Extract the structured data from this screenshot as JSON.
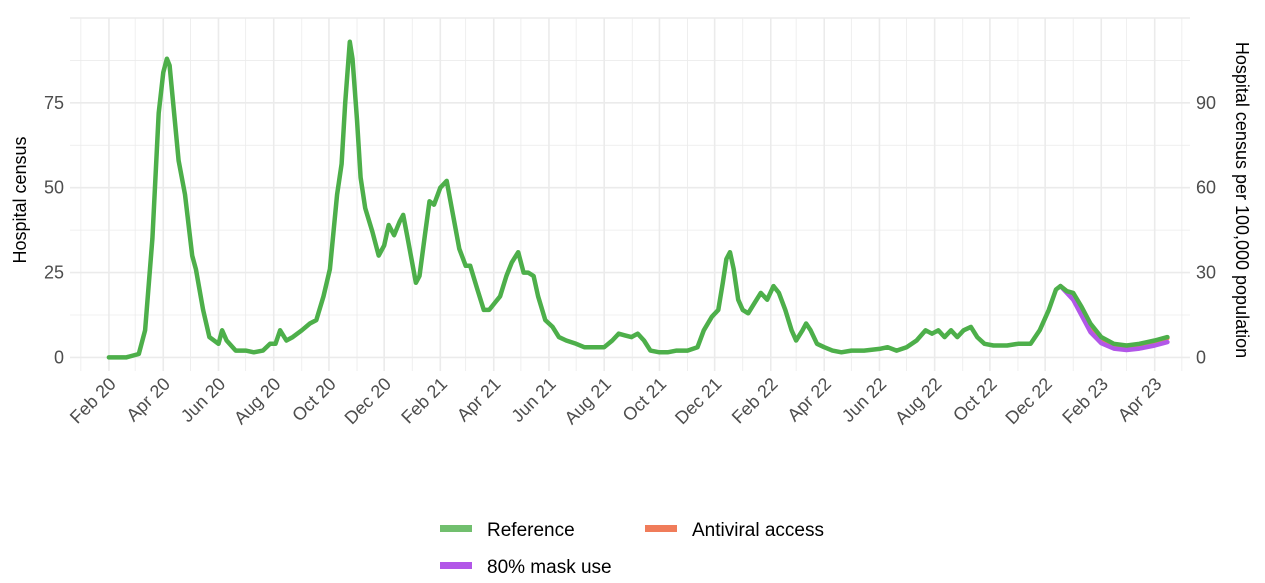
{
  "chart_data": {
    "type": "line",
    "ylabel": "Hospital census",
    "ylabel_right": "Hospital census per 100,000 population",
    "x_ticks": [
      "Feb 20",
      "Apr 20",
      "Jun 20",
      "Aug 20",
      "Oct 20",
      "Dec 20",
      "Feb 21",
      "Apr 21",
      "Jun 21",
      "Aug 21",
      "Oct 21",
      "Dec 21",
      "Feb 22",
      "Apr 22",
      "Jun 22",
      "Aug 22",
      "Oct 22",
      "Dec 22",
      "Feb 23",
      "Apr 23"
    ],
    "y_ticks": [
      0,
      25,
      50,
      75
    ],
    "y_ticks_right": [
      0,
      30,
      60,
      90
    ],
    "ylim": [
      -4,
      100
    ],
    "xlim": [
      "2019-12-20",
      "2023-05-10"
    ],
    "grid": true,
    "legend_position": "bottom",
    "colors": {
      "Reference": "#4daf4a",
      "Antiviral access": "#f07c5a",
      "80% mask use": "#b257e8",
      "grid": "#ebebeb"
    },
    "series": [
      {
        "name": "Reference",
        "points": [
          [
            "2020-02-01",
            0
          ],
          [
            "2020-02-20",
            0
          ],
          [
            "2020-03-05",
            1
          ],
          [
            "2020-03-12",
            8
          ],
          [
            "2020-03-20",
            35
          ],
          [
            "2020-03-27",
            72
          ],
          [
            "2020-04-01",
            84
          ],
          [
            "2020-04-05",
            88
          ],
          [
            "2020-04-08",
            86
          ],
          [
            "2020-04-13",
            72
          ],
          [
            "2020-04-18",
            58
          ],
          [
            "2020-04-25",
            48
          ],
          [
            "2020-05-03",
            30
          ],
          [
            "2020-05-07",
            26
          ],
          [
            "2020-05-15",
            14
          ],
          [
            "2020-05-22",
            6
          ],
          [
            "2020-06-01",
            4
          ],
          [
            "2020-06-05",
            8
          ],
          [
            "2020-06-10",
            5
          ],
          [
            "2020-06-20",
            2
          ],
          [
            "2020-07-01",
            2
          ],
          [
            "2020-07-10",
            1.5
          ],
          [
            "2020-07-20",
            2
          ],
          [
            "2020-07-28",
            4
          ],
          [
            "2020-08-03",
            4
          ],
          [
            "2020-08-08",
            8
          ],
          [
            "2020-08-15",
            5
          ],
          [
            "2020-08-22",
            6
          ],
          [
            "2020-09-01",
            8
          ],
          [
            "2020-09-10",
            10
          ],
          [
            "2020-09-17",
            11
          ],
          [
            "2020-09-25",
            18
          ],
          [
            "2020-10-02",
            26
          ],
          [
            "2020-10-10",
            48
          ],
          [
            "2020-10-15",
            57
          ],
          [
            "2020-10-19",
            75
          ],
          [
            "2020-10-24",
            93
          ],
          [
            "2020-10-27",
            88
          ],
          [
            "2020-11-01",
            70
          ],
          [
            "2020-11-05",
            53
          ],
          [
            "2020-11-10",
            44
          ],
          [
            "2020-11-18",
            37
          ],
          [
            "2020-11-25",
            30
          ],
          [
            "2020-12-01",
            33
          ],
          [
            "2020-12-06",
            39
          ],
          [
            "2020-12-12",
            36
          ],
          [
            "2020-12-18",
            40
          ],
          [
            "2020-12-22",
            42
          ],
          [
            "2020-12-27",
            35
          ],
          [
            "2021-01-05",
            22
          ],
          [
            "2021-01-09",
            24
          ],
          [
            "2021-01-15",
            36
          ],
          [
            "2021-01-20",
            46
          ],
          [
            "2021-01-25",
            45
          ],
          [
            "2021-02-01",
            50
          ],
          [
            "2021-02-08",
            52
          ],
          [
            "2021-02-15",
            42
          ],
          [
            "2021-02-22",
            32
          ],
          [
            "2021-03-01",
            27
          ],
          [
            "2021-03-06",
            27
          ],
          [
            "2021-03-14",
            20
          ],
          [
            "2021-03-21",
            14
          ],
          [
            "2021-03-27",
            14
          ],
          [
            "2021-04-02",
            16
          ],
          [
            "2021-04-08",
            18
          ],
          [
            "2021-04-15",
            24
          ],
          [
            "2021-04-21",
            28
          ],
          [
            "2021-04-28",
            31
          ],
          [
            "2021-05-04",
            25
          ],
          [
            "2021-05-09",
            25
          ],
          [
            "2021-05-15",
            24
          ],
          [
            "2021-05-20",
            18
          ],
          [
            "2021-05-28",
            11
          ],
          [
            "2021-06-05",
            9
          ],
          [
            "2021-06-12",
            6
          ],
          [
            "2021-06-20",
            5
          ],
          [
            "2021-07-01",
            4
          ],
          [
            "2021-07-10",
            3
          ],
          [
            "2021-07-20",
            3
          ],
          [
            "2021-08-01",
            3
          ],
          [
            "2021-08-10",
            5
          ],
          [
            "2021-08-17",
            7
          ],
          [
            "2021-08-24",
            6.5
          ],
          [
            "2021-08-31",
            6
          ],
          [
            "2021-09-07",
            7
          ],
          [
            "2021-09-14",
            5
          ],
          [
            "2021-09-21",
            2
          ],
          [
            "2021-10-01",
            1.5
          ],
          [
            "2021-10-10",
            1.5
          ],
          [
            "2021-10-20",
            2
          ],
          [
            "2021-11-01",
            2
          ],
          [
            "2021-11-12",
            3
          ],
          [
            "2021-11-19",
            8
          ],
          [
            "2021-11-28",
            12
          ],
          [
            "2021-12-05",
            14
          ],
          [
            "2021-12-10",
            22
          ],
          [
            "2021-12-14",
            29
          ],
          [
            "2021-12-18",
            31
          ],
          [
            "2021-12-22",
            26
          ],
          [
            "2021-12-27",
            17
          ],
          [
            "2022-01-01",
            14
          ],
          [
            "2022-01-07",
            13
          ],
          [
            "2022-01-14",
            16
          ],
          [
            "2022-01-21",
            19
          ],
          [
            "2022-01-28",
            17
          ],
          [
            "2022-02-04",
            21
          ],
          [
            "2022-02-10",
            19
          ],
          [
            "2022-02-17",
            14
          ],
          [
            "2022-02-24",
            8
          ],
          [
            "2022-03-01",
            5
          ],
          [
            "2022-03-08",
            8
          ],
          [
            "2022-03-12",
            10
          ],
          [
            "2022-03-17",
            8
          ],
          [
            "2022-03-24",
            4
          ],
          [
            "2022-04-01",
            3
          ],
          [
            "2022-04-10",
            2
          ],
          [
            "2022-04-20",
            1.5
          ],
          [
            "2022-05-01",
            2
          ],
          [
            "2022-05-15",
            2
          ],
          [
            "2022-06-01",
            2.5
          ],
          [
            "2022-06-10",
            3
          ],
          [
            "2022-06-20",
            2
          ],
          [
            "2022-07-01",
            3
          ],
          [
            "2022-07-12",
            5
          ],
          [
            "2022-07-22",
            8
          ],
          [
            "2022-07-29",
            7
          ],
          [
            "2022-08-05",
            8
          ],
          [
            "2022-08-12",
            6
          ],
          [
            "2022-08-19",
            8
          ],
          [
            "2022-08-26",
            6
          ],
          [
            "2022-09-02",
            8
          ],
          [
            "2022-09-10",
            9
          ],
          [
            "2022-09-17",
            6
          ],
          [
            "2022-09-25",
            4
          ],
          [
            "2022-10-05",
            3.5
          ],
          [
            "2022-10-20",
            3.5
          ],
          [
            "2022-11-01",
            4
          ],
          [
            "2022-11-15",
            4
          ],
          [
            "2022-11-25",
            8
          ],
          [
            "2022-12-05",
            14
          ],
          [
            "2022-12-13",
            20
          ],
          [
            "2022-12-18",
            21
          ],
          [
            "2022-12-25",
            19.5
          ],
          [
            "2023-01-01",
            19
          ],
          [
            "2023-01-10",
            15
          ],
          [
            "2023-01-20",
            10
          ],
          [
            "2023-02-01",
            6
          ],
          [
            "2023-02-15",
            4
          ],
          [
            "2023-03-01",
            3.5
          ],
          [
            "2023-03-15",
            4
          ],
          [
            "2023-04-01",
            5
          ],
          [
            "2023-04-15",
            6
          ]
        ]
      },
      {
        "name": "Antiviral access",
        "points": [
          [
            "2022-12-18",
            21
          ],
          [
            "2022-12-25",
            19.5
          ],
          [
            "2023-01-01",
            18.5
          ],
          [
            "2023-01-10",
            14.5
          ],
          [
            "2023-01-20",
            9.5
          ],
          [
            "2023-02-01",
            5.5
          ],
          [
            "2023-02-15",
            3.8
          ],
          [
            "2023-03-01",
            3.3
          ],
          [
            "2023-03-15",
            3.7
          ],
          [
            "2023-04-01",
            4.7
          ],
          [
            "2023-04-15",
            5.7
          ]
        ]
      },
      {
        "name": "80% mask use",
        "points": [
          [
            "2022-12-18",
            21
          ],
          [
            "2022-12-25",
            19
          ],
          [
            "2023-01-01",
            17
          ],
          [
            "2023-01-10",
            12.5
          ],
          [
            "2023-01-20",
            7.5
          ],
          [
            "2023-02-01",
            4.2
          ],
          [
            "2023-02-15",
            2.6
          ],
          [
            "2023-03-01",
            2.2
          ],
          [
            "2023-03-15",
            2.6
          ],
          [
            "2023-04-01",
            3.5
          ],
          [
            "2023-04-15",
            4.5
          ]
        ]
      }
    ],
    "legend": [
      {
        "name": "Reference"
      },
      {
        "name": "Antiviral access"
      },
      {
        "name": "80% mask use"
      }
    ]
  }
}
